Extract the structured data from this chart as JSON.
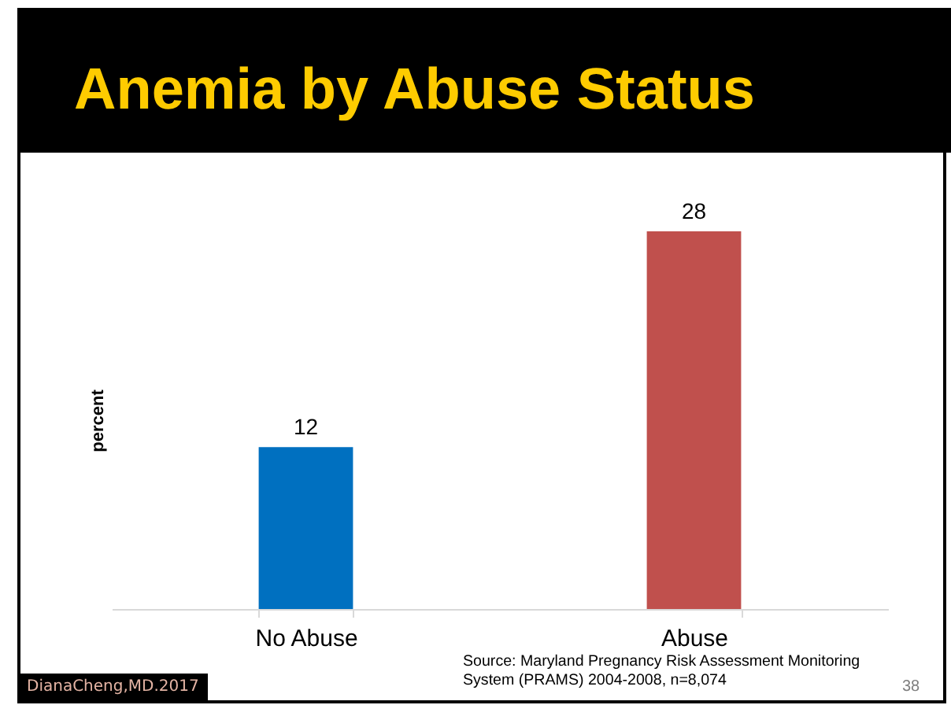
{
  "chart_data": {
    "type": "bar",
    "title": "Anemia by Abuse Status",
    "ylabel": "percent",
    "categories": [
      "No Abuse",
      "Abuse"
    ],
    "values": [
      12,
      28
    ],
    "colors": [
      "#0070c0",
      "#c0504d"
    ],
    "data_labels": true,
    "annotations": [
      "Source: Maryland Pregnancy Risk Assessment Monitoring System (PRAMS) 2004-2008, n=8,074",
      "DianaCheng,MD.2017",
      "38"
    ]
  }
}
